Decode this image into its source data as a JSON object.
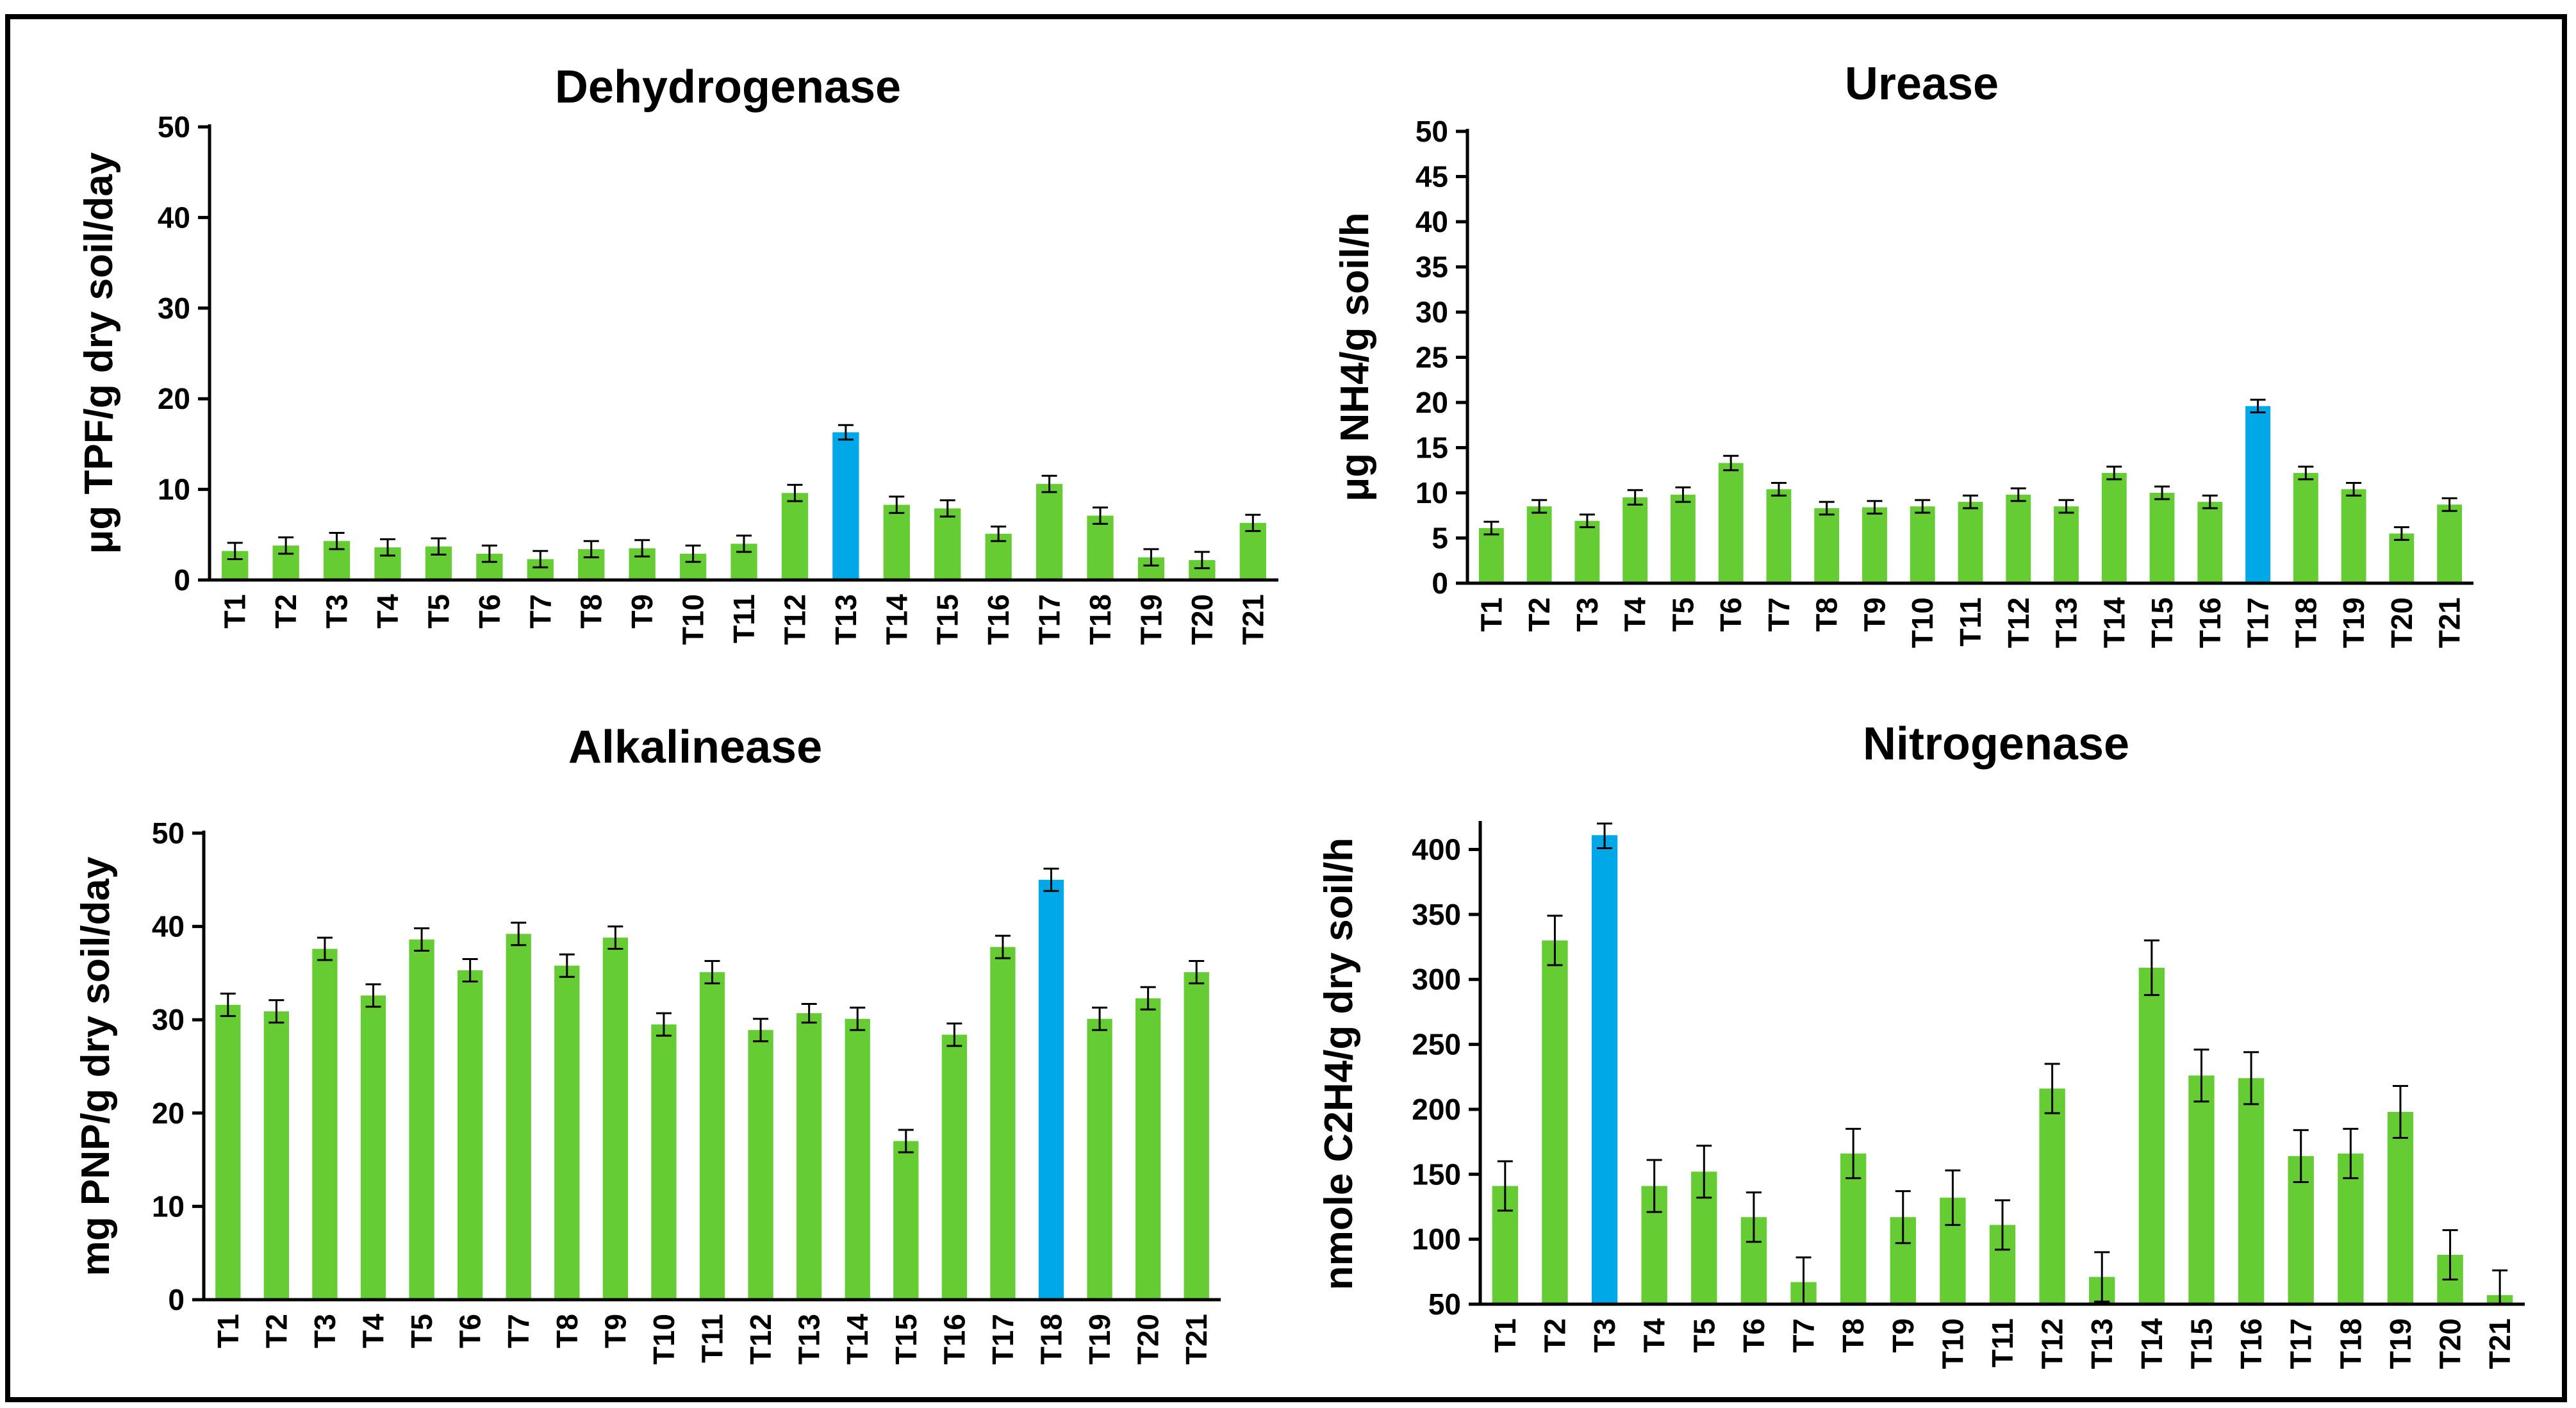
{
  "colors": {
    "normal": "#66cc33",
    "highlight": "#00a8e8",
    "axis": "#000000",
    "frame": "#000000"
  },
  "chart_data": [
    {
      "type": "bar",
      "title": "Dehydrogenase",
      "xlabel": "",
      "ylabel": "μg TPF/g dry soil/day",
      "ylim": [
        0,
        50
      ],
      "yticks": [
        0,
        10,
        20,
        30,
        40,
        50
      ],
      "categories": [
        "T1",
        "T2",
        "T3",
        "T4",
        "T5",
        "T6",
        "T7",
        "T8",
        "T9",
        "T10",
        "T11",
        "T12",
        "T13",
        "T14",
        "T15",
        "T16",
        "T17",
        "T18",
        "T19",
        "T20",
        "T21"
      ],
      "values": [
        3.2,
        3.8,
        4.3,
        3.6,
        3.7,
        2.9,
        2.3,
        3.4,
        3.5,
        2.9,
        4.0,
        9.6,
        16.3,
        8.3,
        7.9,
        5.1,
        10.6,
        7.1,
        2.5,
        2.2,
        6.3
      ],
      "errors": [
        0.9,
        0.9,
        0.9,
        0.9,
        0.9,
        0.9,
        0.9,
        0.9,
        0.9,
        0.9,
        0.9,
        0.9,
        0.8,
        0.9,
        0.9,
        0.8,
        0.9,
        0.9,
        0.9,
        0.9,
        0.9
      ],
      "highlight": "T13"
    },
    {
      "type": "bar",
      "title": "Urease",
      "xlabel": "",
      "ylabel": "μg NH4/g soil/h",
      "ylim": [
        0,
        50
      ],
      "yticks": [
        0,
        5,
        10,
        15,
        20,
        25,
        30,
        35,
        40,
        45,
        50
      ],
      "categories": [
        "T1",
        "T2",
        "T3",
        "T4",
        "T5",
        "T6",
        "T7",
        "T8",
        "T9",
        "T10",
        "T11",
        "T12",
        "T13",
        "T14",
        "T15",
        "T16",
        "T17",
        "T18",
        "T19",
        "T20",
        "T21"
      ],
      "values": [
        6.1,
        8.5,
        6.9,
        9.5,
        9.8,
        13.3,
        10.4,
        8.3,
        8.4,
        8.5,
        9.0,
        9.8,
        8.5,
        12.2,
        10.0,
        9.0,
        19.6,
        12.2,
        10.4,
        5.5,
        8.7
      ],
      "errors": [
        0.7,
        0.7,
        0.7,
        0.8,
        0.8,
        0.8,
        0.7,
        0.7,
        0.7,
        0.7,
        0.7,
        0.7,
        0.7,
        0.7,
        0.7,
        0.7,
        0.7,
        0.7,
        0.7,
        0.7,
        0.7
      ],
      "highlight": "T17"
    },
    {
      "type": "bar",
      "title": "Alkalinease",
      "xlabel": "",
      "ylabel": "mg PNP/g dry soil/day",
      "ylim": [
        0,
        50
      ],
      "yticks": [
        0,
        10,
        20,
        30,
        40,
        50
      ],
      "categories": [
        "T1",
        "T2",
        "T3",
        "T4",
        "T5",
        "T6",
        "T7",
        "T8",
        "T9",
        "T10",
        "T11",
        "T12",
        "T13",
        "T14",
        "T15",
        "T16",
        "T17",
        "T18",
        "T19",
        "T20",
        "T21"
      ],
      "values": [
        31.6,
        30.9,
        37.6,
        32.6,
        38.6,
        35.3,
        39.2,
        35.8,
        38.8,
        29.5,
        35.1,
        28.9,
        30.7,
        30.1,
        17.0,
        28.4,
        37.8,
        45.0,
        30.1,
        32.3,
        35.1
      ],
      "errors": [
        1.2,
        1.2,
        1.2,
        1.2,
        1.2,
        1.2,
        1.2,
        1.2,
        1.2,
        1.2,
        1.2,
        1.2,
        1.0,
        1.2,
        1.2,
        1.2,
        1.2,
        1.2,
        1.2,
        1.2,
        1.2
      ],
      "highlight": "T18"
    },
    {
      "type": "bar",
      "title": "Nitrogenase",
      "xlabel": "",
      "ylabel": "nmole C2H4/g dry soil/h",
      "ylim": [
        50,
        420
      ],
      "yticks": [
        50,
        100,
        150,
        200,
        250,
        300,
        350,
        400
      ],
      "categories": [
        "T1",
        "T2",
        "T3",
        "T4",
        "T5",
        "T6",
        "T7",
        "T8",
        "T9",
        "T10",
        "T11",
        "T12",
        "T13",
        "T14",
        "T15",
        "T16",
        "T17",
        "T18",
        "T19",
        "T20",
        "T21"
      ],
      "values": [
        141,
        330,
        411,
        141,
        152,
        117,
        67,
        166,
        117,
        132,
        111,
        216,
        71,
        309,
        226,
        224,
        164,
        166,
        198,
        88,
        57
      ],
      "errors": [
        19,
        19,
        10,
        20,
        20,
        19,
        19,
        19,
        20,
        21,
        19,
        19,
        19,
        21,
        20,
        20,
        20,
        19,
        20,
        19,
        19
      ],
      "highlight": "T3"
    }
  ]
}
